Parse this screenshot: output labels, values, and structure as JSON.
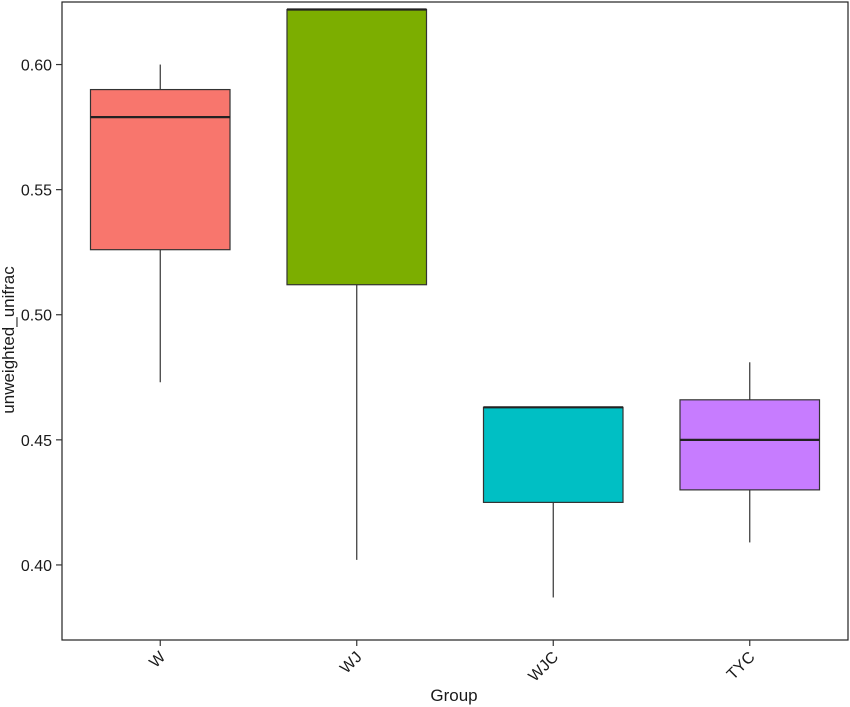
{
  "chart_data": {
    "type": "boxplot",
    "title": "",
    "xlabel": "Group",
    "ylabel": "unweighted_unifrac",
    "ylim": [
      0.37,
      0.625
    ],
    "yticks": [
      0.4,
      0.45,
      0.5,
      0.55,
      0.6
    ],
    "ytick_labels": [
      "0.40",
      "0.45",
      "0.50",
      "0.55",
      "0.60"
    ],
    "grid": false,
    "legend": "none",
    "categories": [
      "W",
      "WJ",
      "WJC",
      "TYC"
    ],
    "boxes": [
      {
        "category": "W",
        "min": 0.473,
        "q1": 0.526,
        "median": 0.579,
        "q3": 0.59,
        "max": 0.6,
        "color": "#F8766D"
      },
      {
        "category": "WJ",
        "min": 0.402,
        "q1": 0.512,
        "median": 0.622,
        "q3": 0.622,
        "max": 0.622,
        "color": "#7CAE00"
      },
      {
        "category": "WJC",
        "min": 0.387,
        "q1": 0.425,
        "median": 0.463,
        "q3": 0.463,
        "max": 0.463,
        "color": "#00BFC4"
      },
      {
        "category": "TYC",
        "min": 0.409,
        "q1": 0.43,
        "median": 0.45,
        "q3": 0.466,
        "max": 0.481,
        "color": "#C77CFF"
      }
    ]
  }
}
